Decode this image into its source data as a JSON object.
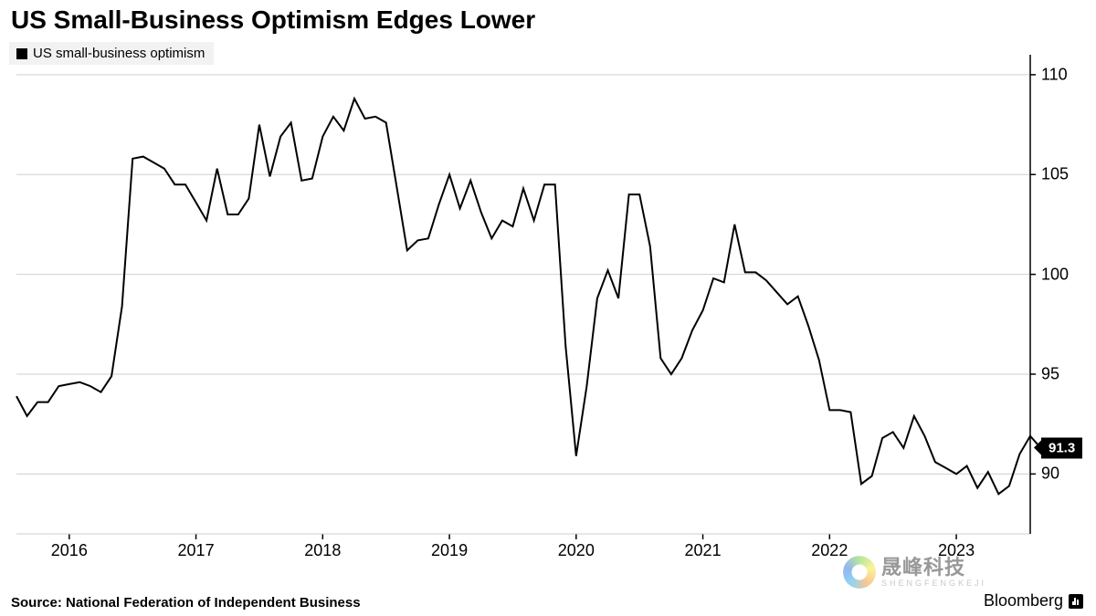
{
  "title": "US Small-Business Optimism Edges Lower",
  "legend": {
    "label": "US small-business optimism",
    "swatch_color": "#000000"
  },
  "source": "Source: National Federation of Independent Business",
  "attribution": "Bloomberg",
  "watermark": {
    "main": "晟峰科技",
    "sub": "SHENGFENGKEJI"
  },
  "chart": {
    "type": "line",
    "line_color": "#000000",
    "line_width": 2,
    "background_color": "#ffffff",
    "grid_color": "#cfcfcf",
    "x_axis": {
      "domain_min": 0,
      "domain_max": 96,
      "tick_positions": [
        5,
        17,
        29,
        41,
        53,
        65,
        77,
        89
      ],
      "tick_labels": [
        "2016",
        "2017",
        "2018",
        "2019",
        "2020",
        "2021",
        "2022",
        "2023"
      ]
    },
    "y_axis": {
      "min": 87,
      "max": 111,
      "ticks": [
        90,
        95,
        100,
        105,
        110
      ],
      "side": "right"
    },
    "endpoint_label": "91.3",
    "values": [
      93.9,
      92.9,
      93.6,
      93.6,
      94.4,
      94.5,
      94.6,
      94.4,
      94.1,
      94.9,
      98.4,
      105.8,
      105.9,
      105.6,
      105.3,
      104.5,
      104.5,
      103.6,
      102.7,
      105.3,
      103.0,
      103.0,
      103.8,
      107.5,
      104.9,
      106.9,
      107.6,
      104.7,
      104.8,
      106.9,
      107.9,
      107.2,
      108.8,
      107.8,
      107.9,
      107.6,
      104.4,
      101.2,
      101.7,
      101.8,
      103.5,
      105.0,
      103.3,
      104.7,
      103.1,
      101.8,
      102.7,
      102.4,
      104.3,
      102.7,
      104.5,
      104.5,
      96.4,
      90.9,
      94.4,
      98.8,
      100.2,
      98.8,
      104.0,
      104.0,
      101.4,
      95.8,
      95.0,
      95.8,
      97.2,
      98.2,
      99.8,
      99.6,
      102.5,
      100.1,
      100.1,
      99.7,
      99.1,
      98.5,
      98.9,
      97.4,
      95.7,
      93.2,
      93.2,
      93.1,
      89.5,
      89.9,
      91.8,
      92.1,
      91.3,
      92.9,
      91.9,
      90.6,
      90.3,
      90.0,
      90.4,
      89.3,
      90.1,
      89.0,
      89.4,
      91.0,
      91.9,
      91.3
    ]
  }
}
